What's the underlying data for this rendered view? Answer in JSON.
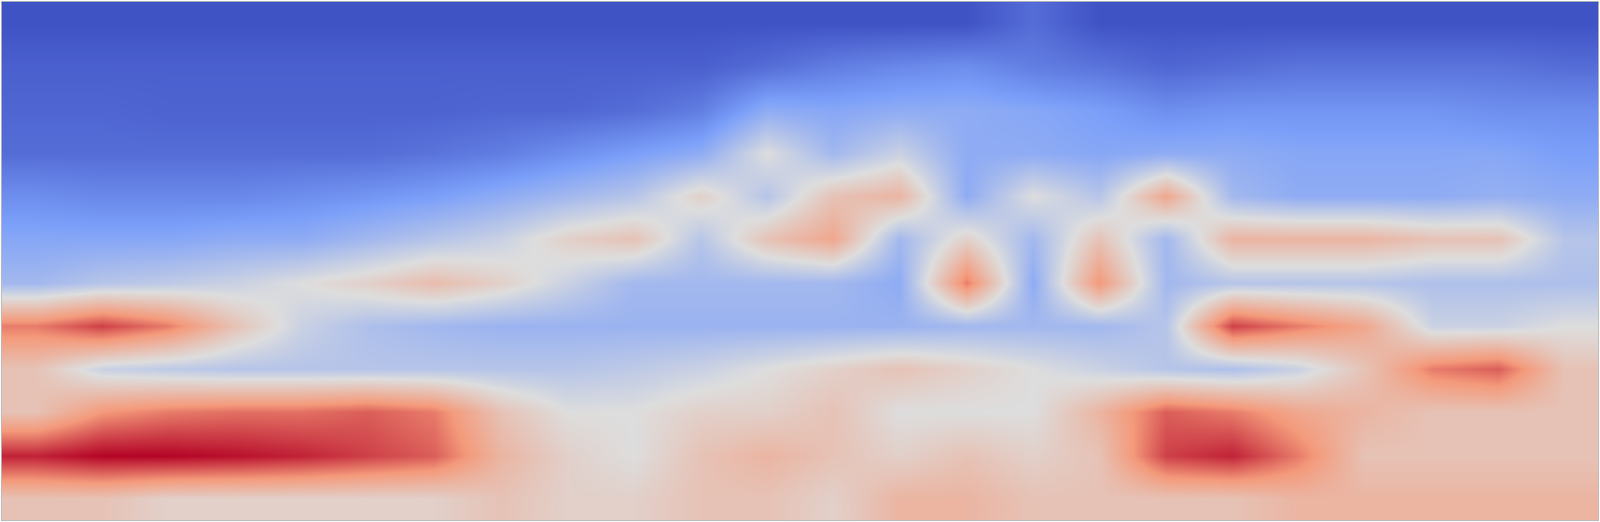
{
  "chart_data": {
    "type": "heatmap",
    "tick_labels": false,
    "x": [
      0,
      1,
      2,
      3,
      4,
      5,
      6,
      7,
      8,
      9,
      10,
      11,
      12,
      13,
      14,
      15,
      16,
      17,
      18,
      19,
      20,
      21,
      22,
      23
    ],
    "y": [
      0,
      1,
      2,
      3,
      4,
      5,
      6,
      7,
      8,
      9,
      10,
      11
    ],
    "xlim": [
      -0.5,
      23.5
    ],
    "ylim": [
      11.5,
      -0.5
    ],
    "zlim": [
      0,
      1
    ],
    "z": [
      [
        0.02,
        0.02,
        0.02,
        0.02,
        0.02,
        0.02,
        0.02,
        0.02,
        0.02,
        0.02,
        0.02,
        0.02,
        0.02,
        0.02,
        0.02,
        0.1,
        0.02,
        0.02,
        0.02,
        0.02,
        0.02,
        0.02,
        0.02,
        0.02
      ],
      [
        0.06,
        0.06,
        0.06,
        0.06,
        0.06,
        0.06,
        0.06,
        0.06,
        0.06,
        0.06,
        0.06,
        0.1,
        0.15,
        0.18,
        0.2,
        0.15,
        0.12,
        0.08,
        0.1,
        0.12,
        0.12,
        0.12,
        0.12,
        0.1
      ],
      [
        0.08,
        0.08,
        0.07,
        0.07,
        0.07,
        0.07,
        0.07,
        0.08,
        0.08,
        0.1,
        0.15,
        0.3,
        0.28,
        0.3,
        0.3,
        0.28,
        0.25,
        0.2,
        0.22,
        0.22,
        0.22,
        0.22,
        0.2,
        0.2
      ],
      [
        0.1,
        0.1,
        0.1,
        0.1,
        0.1,
        0.1,
        0.12,
        0.15,
        0.2,
        0.25,
        0.3,
        0.5,
        0.35,
        0.45,
        0.3,
        0.3,
        0.28,
        0.3,
        0.3,
        0.28,
        0.28,
        0.28,
        0.28,
        0.25
      ],
      [
        0.2,
        0.18,
        0.18,
        0.18,
        0.2,
        0.22,
        0.25,
        0.3,
        0.35,
        0.4,
        0.55,
        0.4,
        0.6,
        0.65,
        0.3,
        0.5,
        0.4,
        0.7,
        0.35,
        0.3,
        0.3,
        0.3,
        0.32,
        0.3
      ],
      [
        0.28,
        0.28,
        0.28,
        0.3,
        0.3,
        0.35,
        0.4,
        0.45,
        0.55,
        0.6,
        0.4,
        0.6,
        0.7,
        0.35,
        0.55,
        0.35,
        0.6,
        0.35,
        0.65,
        0.65,
        0.65,
        0.6,
        0.6,
        0.4
      ],
      [
        0.35,
        0.4,
        0.42,
        0.45,
        0.5,
        0.55,
        0.62,
        0.55,
        0.45,
        0.35,
        0.35,
        0.35,
        0.35,
        0.3,
        0.8,
        0.3,
        0.75,
        0.35,
        0.4,
        0.4,
        0.4,
        0.38,
        0.38,
        0.38
      ],
      [
        0.8,
        0.9,
        0.8,
        0.6,
        0.45,
        0.38,
        0.35,
        0.33,
        0.33,
        0.33,
        0.33,
        0.33,
        0.33,
        0.33,
        0.35,
        0.35,
        0.35,
        0.4,
        0.9,
        0.8,
        0.7,
        0.45,
        0.45,
        0.5
      ],
      [
        0.6,
        0.45,
        0.42,
        0.4,
        0.4,
        0.4,
        0.4,
        0.4,
        0.4,
        0.42,
        0.45,
        0.5,
        0.55,
        0.6,
        0.55,
        0.5,
        0.45,
        0.4,
        0.38,
        0.45,
        0.6,
        0.8,
        0.85,
        0.6
      ],
      [
        0.6,
        0.75,
        0.8,
        0.82,
        0.82,
        0.85,
        0.8,
        0.6,
        0.5,
        0.5,
        0.55,
        0.55,
        0.6,
        0.5,
        0.5,
        0.5,
        0.65,
        0.85,
        0.8,
        0.7,
        0.65,
        0.6,
        0.6,
        0.6
      ],
      [
        0.95,
        1.0,
        1.0,
        0.98,
        0.95,
        0.9,
        0.85,
        0.65,
        0.55,
        0.5,
        0.6,
        0.65,
        0.6,
        0.55,
        0.6,
        0.55,
        0.6,
        0.9,
        0.95,
        0.8,
        0.6,
        0.6,
        0.6,
        0.6
      ],
      [
        0.6,
        0.6,
        0.55,
        0.55,
        0.55,
        0.55,
        0.55,
        0.6,
        0.55,
        0.55,
        0.6,
        0.6,
        0.55,
        0.65,
        0.65,
        0.6,
        0.6,
        0.6,
        0.6,
        0.65,
        0.65,
        0.65,
        0.65,
        0.65
      ]
    ]
  }
}
